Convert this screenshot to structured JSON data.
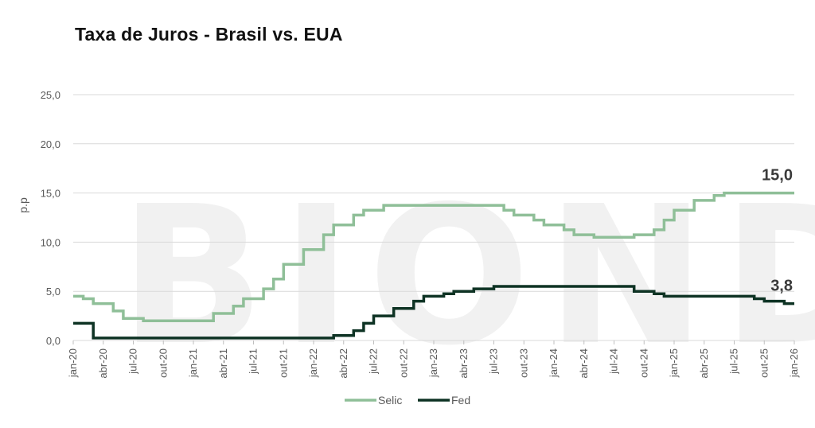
{
  "chart_data": {
    "type": "line",
    "title": "Taxa de Juros - Brasil vs. EUA",
    "ylabel": "p.p",
    "xlabel": "",
    "ylim": [
      0,
      25
    ],
    "yticks": [
      "0,0",
      "5,0",
      "10,0",
      "15,0",
      "20,0",
      "25,0"
    ],
    "xticks": [
      "jan-20",
      "abr-20",
      "jul-20",
      "out-20",
      "jan-21",
      "abr-21",
      "jul-21",
      "out-21",
      "jan-22",
      "abr-22",
      "jul-22",
      "out-22",
      "jan-23",
      "abr-23",
      "jul-23",
      "out-23",
      "jan-24",
      "abr-24",
      "jul-24",
      "out-24",
      "jan-25",
      "abr-25",
      "jul-25",
      "out-25",
      "jan-26"
    ],
    "grid": true,
    "legend": "bottom",
    "watermark": "BIOND",
    "end_labels": {
      "selic": "15,0",
      "fed": "3,8"
    },
    "colors": {
      "selic": "#8fbf98",
      "fed": "#0e3324",
      "grid": "#d9d9d9"
    },
    "series": [
      {
        "name": "Selic",
        "step": true,
        "points": [
          [
            "2020-01",
            4.5
          ],
          [
            "2020-02",
            4.25
          ],
          [
            "2020-03",
            3.75
          ],
          [
            "2020-05",
            3.0
          ],
          [
            "2020-06",
            2.25
          ],
          [
            "2020-08",
            2.0
          ],
          [
            "2021-03",
            2.75
          ],
          [
            "2021-05",
            3.5
          ],
          [
            "2021-06",
            4.25
          ],
          [
            "2021-08",
            5.25
          ],
          [
            "2021-09",
            6.25
          ],
          [
            "2021-10",
            7.75
          ],
          [
            "2021-12",
            9.25
          ],
          [
            "2022-02",
            10.75
          ],
          [
            "2022-03",
            11.75
          ],
          [
            "2022-05",
            12.75
          ],
          [
            "2022-06",
            13.25
          ],
          [
            "2022-08",
            13.75
          ],
          [
            "2023-08",
            13.25
          ],
          [
            "2023-09",
            12.75
          ],
          [
            "2023-11",
            12.25
          ],
          [
            "2023-12",
            11.75
          ],
          [
            "2024-02",
            11.25
          ],
          [
            "2024-03",
            10.75
          ],
          [
            "2024-05",
            10.5
          ],
          [
            "2024-09",
            10.75
          ],
          [
            "2024-11",
            11.25
          ],
          [
            "2024-12",
            12.25
          ],
          [
            "2025-01",
            13.25
          ],
          [
            "2025-03",
            14.25
          ],
          [
            "2025-05",
            14.75
          ],
          [
            "2025-06",
            15.0
          ],
          [
            "2026-01",
            15.0
          ]
        ]
      },
      {
        "name": "Fed",
        "step": true,
        "points": [
          [
            "2020-01",
            1.75
          ],
          [
            "2020-03",
            0.25
          ],
          [
            "2022-03",
            0.5
          ],
          [
            "2022-05",
            1.0
          ],
          [
            "2022-06",
            1.75
          ],
          [
            "2022-07",
            2.5
          ],
          [
            "2022-09",
            3.25
          ],
          [
            "2022-11",
            4.0
          ],
          [
            "2022-12",
            4.5
          ],
          [
            "2023-02",
            4.75
          ],
          [
            "2023-03",
            5.0
          ],
          [
            "2023-05",
            5.25
          ],
          [
            "2023-07",
            5.5
          ],
          [
            "2024-09",
            5.0
          ],
          [
            "2024-11",
            4.75
          ],
          [
            "2024-12",
            4.5
          ],
          [
            "2025-09",
            4.25
          ],
          [
            "2025-10",
            4.0
          ],
          [
            "2025-12",
            3.75
          ],
          [
            "2026-01",
            3.75
          ]
        ]
      }
    ]
  }
}
